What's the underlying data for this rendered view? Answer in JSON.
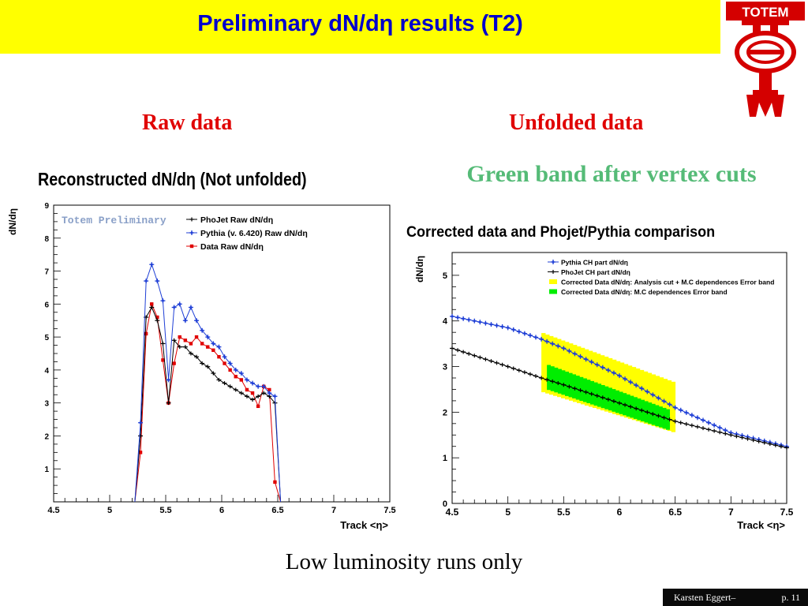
{
  "slide": {
    "title": "Preliminary dN/dη results (T2)",
    "logo_text": "TOTEM",
    "left_heading": "Raw data",
    "right_heading": "Unfolded data",
    "right_note": "Green band after vertex cuts",
    "footnote": "Low luminosity runs only",
    "footer_author": "Karsten Eggert–",
    "footer_page": "p. 11"
  },
  "colors": {
    "title_bar": "#ffff00",
    "title_text": "#0000cc",
    "heading_red": "#e00000",
    "note_green": "#55bb77",
    "phojet": "#000000",
    "pythia": "#1f3fd6",
    "data_raw": "#e00000",
    "band_yellow": "#ffff00",
    "band_green": "#00ee00"
  },
  "chart_data": [
    {
      "type": "line",
      "title": "Reconstructed dN/dη (Not unfolded)",
      "xlabel": "Track <η>",
      "ylabel": "dN/dη",
      "xlim": [
        4.5,
        7.5
      ],
      "ylim": [
        0,
        9
      ],
      "xticks": [
        4.5,
        5,
        5.5,
        6,
        6.5,
        7,
        7.5
      ],
      "yticks": [
        1,
        2,
        3,
        4,
        5,
        6,
        7,
        8,
        9
      ],
      "annotation": "Totem Preliminary",
      "legend_position": "top-right",
      "x": [
        5.225,
        5.275,
        5.325,
        5.375,
        5.425,
        5.475,
        5.525,
        5.575,
        5.625,
        5.675,
        5.725,
        5.775,
        5.825,
        5.875,
        5.925,
        5.975,
        6.025,
        6.075,
        6.125,
        6.175,
        6.225,
        6.275,
        6.325,
        6.375,
        6.425,
        6.475,
        6.525
      ],
      "series": [
        {
          "name": "PhoJet Raw dN/dη",
          "values": [
            0,
            2.0,
            5.6,
            5.9,
            5.5,
            4.8,
            3.0,
            4.9,
            4.7,
            4.7,
            4.5,
            4.4,
            4.2,
            4.1,
            3.9,
            3.7,
            3.6,
            3.5,
            3.4,
            3.3,
            3.2,
            3.1,
            3.2,
            3.3,
            3.2,
            3.0,
            0
          ]
        },
        {
          "name": "Pythia (v. 6.420) Raw dN/dη",
          "values": [
            0,
            2.4,
            6.7,
            7.2,
            6.7,
            6.1,
            3.7,
            5.9,
            6.0,
            5.5,
            5.9,
            5.5,
            5.2,
            5.0,
            4.8,
            4.7,
            4.4,
            4.2,
            4.0,
            3.9,
            3.7,
            3.6,
            3.5,
            3.5,
            3.3,
            3.2,
            0
          ]
        },
        {
          "name": "Data Raw dN/dη",
          "values": [
            0,
            1.5,
            5.1,
            6.0,
            5.6,
            4.3,
            3.0,
            4.2,
            5.0,
            4.9,
            4.8,
            5.0,
            4.8,
            4.7,
            4.6,
            4.4,
            4.2,
            4.0,
            3.8,
            3.7,
            3.4,
            3.3,
            2.9,
            3.5,
            3.4,
            0.6,
            0
          ]
        }
      ]
    },
    {
      "type": "line",
      "title": "Corrected data and Phojet/Pythia comparison",
      "xlabel": "Track <η>",
      "ylabel": "dN/dη",
      "xlim": [
        4.5,
        7.5
      ],
      "ylim": [
        0,
        5.5
      ],
      "xticks": [
        4.5,
        5,
        5.5,
        6,
        6.5,
        7,
        7.5
      ],
      "yticks": [
        0,
        1,
        2,
        3,
        4,
        5
      ],
      "legend_position": "top-right",
      "series": [
        {
          "name": "Pythia CH part dN/dη",
          "x": [
            4.5,
            5.0,
            5.3,
            5.5,
            6.0,
            6.5,
            7.0,
            7.5
          ],
          "values": [
            4.1,
            3.85,
            3.6,
            3.4,
            2.8,
            2.1,
            1.55,
            1.25
          ]
        },
        {
          "name": "PhoJet CH part dN/dη",
          "x": [
            4.5,
            5.0,
            5.3,
            5.5,
            6.0,
            6.5,
            7.0,
            7.5
          ],
          "values": [
            3.4,
            3.0,
            2.75,
            2.6,
            2.2,
            1.8,
            1.5,
            1.22
          ]
        },
        {
          "name": "Corrected Data dN/dη: Analysis cut + M.C dependences Error band",
          "x": [
            5.3,
            6.5
          ],
          "upper": [
            3.75,
            2.65
          ],
          "lower": [
            2.45,
            1.55
          ]
        },
        {
          "name": "Corrected Data dN/dη: M.C dependences Error band",
          "x": [
            5.35,
            6.45
          ],
          "upper": [
            3.05,
            2.05
          ],
          "lower": [
            2.5,
            1.6
          ]
        }
      ]
    }
  ]
}
